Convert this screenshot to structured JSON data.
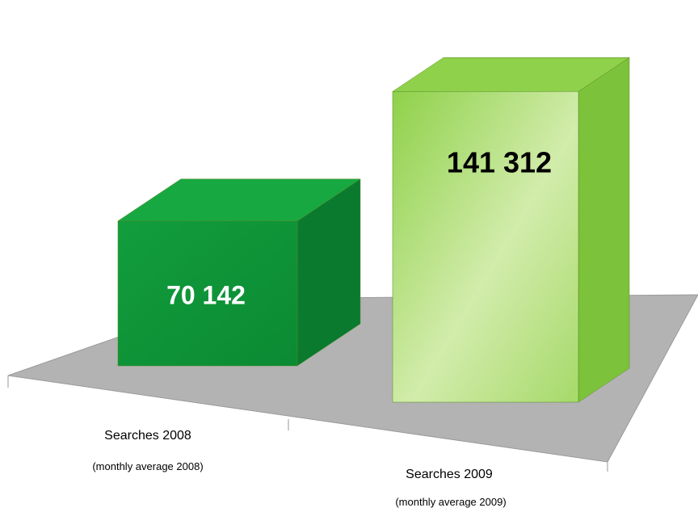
{
  "chart_data": {
    "type": "bar",
    "categories": [
      "Searches 2008",
      "Searches 2009"
    ],
    "subcategories": [
      "(monthly average 2008)",
      "(monthly average 2009)"
    ],
    "values": [
      70142,
      141312
    ],
    "value_labels": [
      "70 142",
      "141 312"
    ],
    "title": "",
    "xlabel": "",
    "ylabel": "",
    "ylim": [
      0,
      160000
    ],
    "grid": false,
    "legend": "none",
    "style": "3d",
    "colors": {
      "bar_2008_front": "#0f9a3a",
      "bar_2008_side": "#0a7a2e",
      "bar_2008_top": "#18a842",
      "bar_2009_front": "#b8e07a",
      "bar_2009_side": "#7cc23a",
      "bar_2009_top": "#8fd14a",
      "floor": "#b3b3b3",
      "label_2008": "#ffffff",
      "label_2009": "#000000"
    }
  }
}
